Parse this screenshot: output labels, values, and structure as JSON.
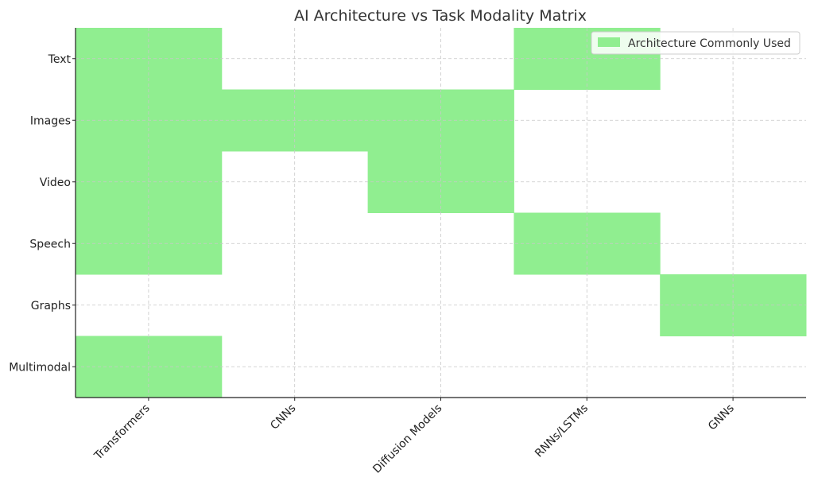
{
  "chart_data": {
    "type": "heatmap",
    "title": "AI Architecture vs Task Modality Matrix",
    "xlabel": "",
    "ylabel": "",
    "x_categories": [
      "Transformers",
      "CNNs",
      "Diffusion Models",
      "RNNs/LSTMs",
      "GNNs"
    ],
    "y_categories": [
      "Text",
      "Images",
      "Video",
      "Speech",
      "Graphs",
      "Multimodal"
    ],
    "matrix": [
      [
        1,
        0,
        0,
        1,
        0
      ],
      [
        1,
        1,
        1,
        0,
        0
      ],
      [
        1,
        0,
        1,
        0,
        0
      ],
      [
        1,
        0,
        0,
        1,
        0
      ],
      [
        0,
        0,
        0,
        0,
        1
      ],
      [
        1,
        0,
        0,
        0,
        0
      ]
    ],
    "legend": {
      "label": "Architecture Commonly Used",
      "placement": "top-right"
    },
    "grid": true,
    "x_tick_rotation": "45deg",
    "colors": {
      "filled": "#90ee90",
      "grid": "#c8c8c8",
      "axis": "#222222"
    }
  }
}
